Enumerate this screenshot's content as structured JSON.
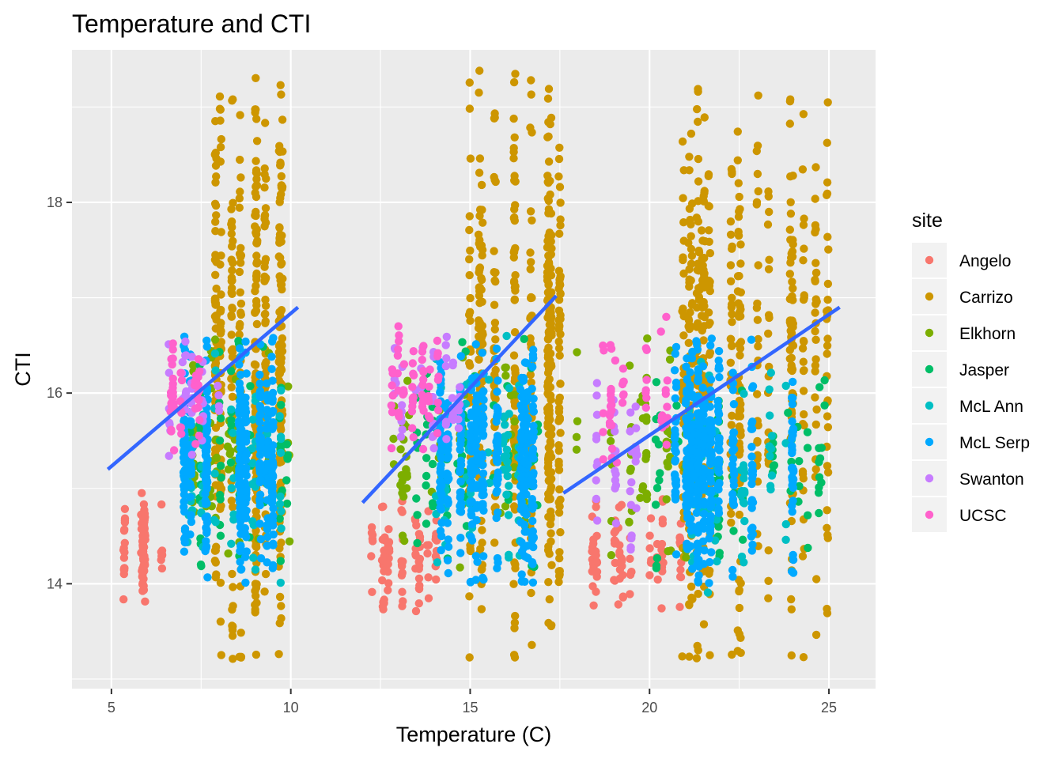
{
  "chart_data": {
    "type": "scatter",
    "title": "Temperature and CTI",
    "xlabel": "Temperature (C)",
    "ylabel": "CTI",
    "xlim": [
      3.9,
      26.3
    ],
    "ylim": [
      12.9,
      19.6
    ],
    "x_ticks": [
      5,
      10,
      15,
      20,
      25
    ],
    "y_ticks": [
      14,
      16,
      18
    ],
    "grid": true,
    "legend": {
      "title": "site",
      "position": "right",
      "entries": [
        "Angelo",
        "Carrizo",
        "Elkhorn",
        "Jasper",
        "McL Ann",
        "McL Serp",
        "Swanton",
        "UCSC"
      ]
    },
    "colors": {
      "Angelo": "#F8766D",
      "Carrizo": "#CD9600",
      "Elkhorn": "#7CAE00",
      "Jasper": "#00BE67",
      "McL Ann": "#00BFC4",
      "McL Serp": "#00A9FF",
      "Swanton": "#C77CFF",
      "UCSC": "#FF61CC",
      "fit_line": "#3366FF",
      "panel": "#EBEBEB"
    },
    "series": [
      {
        "name": "Angelo",
        "clusters": [
          {
            "x": [
              4.9,
              6.4
            ],
            "y": [
              13.7,
              15.0
            ],
            "n": 90
          },
          {
            "x": [
              12.0,
              14.2
            ],
            "y": [
              13.7,
              14.9
            ],
            "n": 90
          },
          {
            "x": [
              18.4,
              21.0
            ],
            "y": [
              13.7,
              14.9
            ],
            "n": 90
          }
        ]
      },
      {
        "name": "Carrizo",
        "clusters": [
          {
            "x": [
              7.8,
              10.0
            ],
            "y": [
              13.2,
              19.4
            ],
            "n": 520
          },
          {
            "x": [
              14.9,
              17.5
            ],
            "y": [
              13.2,
              19.4
            ],
            "n": 520
          },
          {
            "x": [
              20.8,
              25.3
            ],
            "y": [
              13.2,
              19.4
            ],
            "n": 560
          }
        ]
      },
      {
        "name": "Elkhorn",
        "clusters": [
          {
            "x": [
              7.0,
              10.0
            ],
            "y": [
              14.1,
              16.6
            ],
            "n": 60
          },
          {
            "x": [
              12.8,
              17.5
            ],
            "y": [
              14.1,
              16.6
            ],
            "n": 70
          },
          {
            "x": [
              17.8,
              21.3
            ],
            "y": [
              14.1,
              16.6
            ],
            "n": 60
          }
        ]
      },
      {
        "name": "Jasper",
        "clusters": [
          {
            "x": [
              7.2,
              10.3
            ],
            "y": [
              14.1,
              16.6
            ],
            "n": 70
          },
          {
            "x": [
              13.5,
              17.0
            ],
            "y": [
              14.1,
              16.6
            ],
            "n": 70
          },
          {
            "x": [
              19.7,
              25.0
            ],
            "y": [
              14.1,
              16.6
            ],
            "n": 70
          }
        ]
      },
      {
        "name": "McL Ann",
        "clusters": [
          {
            "x": [
              6.9,
              9.8
            ],
            "y": [
              13.8,
              16.6
            ],
            "n": 70
          },
          {
            "x": [
              13.9,
              16.7
            ],
            "y": [
              13.8,
              16.6
            ],
            "n": 70
          },
          {
            "x": [
              20.7,
              24.2
            ],
            "y": [
              13.8,
              16.6
            ],
            "n": 70
          }
        ]
      },
      {
        "name": "McL Serp",
        "clusters": [
          {
            "x": [
              7.0,
              9.6
            ],
            "y": [
              14.0,
              16.6
            ],
            "n": 420
          },
          {
            "x": [
              14.0,
              16.8
            ],
            "y": [
              14.0,
              16.6
            ],
            "n": 420
          },
          {
            "x": [
              20.7,
              24.2
            ],
            "y": [
              14.0,
              16.6
            ],
            "n": 440
          }
        ]
      },
      {
        "name": "Swanton",
        "clusters": [
          {
            "x": [
              6.6,
              8.0
            ],
            "y": [
              15.3,
              16.6
            ],
            "n": 40
          },
          {
            "x": [
              12.7,
              14.7
            ],
            "y": [
              15.3,
              16.6
            ],
            "n": 50
          },
          {
            "x": [
              18.5,
              19.7
            ],
            "y": [
              14.3,
              16.6
            ],
            "n": 40
          }
        ]
      },
      {
        "name": "UCSC",
        "clusters": [
          {
            "x": [
              6.6,
              8.0
            ],
            "y": [
              15.3,
              16.8
            ],
            "n": 50
          },
          {
            "x": [
              12.6,
              14.4
            ],
            "y": [
              15.3,
              16.8
            ],
            "n": 60
          },
          {
            "x": [
              18.6,
              20.5
            ],
            "y": [
              15.0,
              16.8
            ],
            "n": 50
          }
        ]
      }
    ],
    "fit_lines": [
      {
        "x": [
          4.9,
          10.2
        ],
        "y": [
          15.2,
          16.9
        ]
      },
      {
        "x": [
          12.0,
          17.4
        ],
        "y": [
          14.85,
          17.02
        ]
      },
      {
        "x": [
          17.6,
          25.3
        ],
        "y": [
          14.95,
          16.9
        ]
      }
    ]
  }
}
